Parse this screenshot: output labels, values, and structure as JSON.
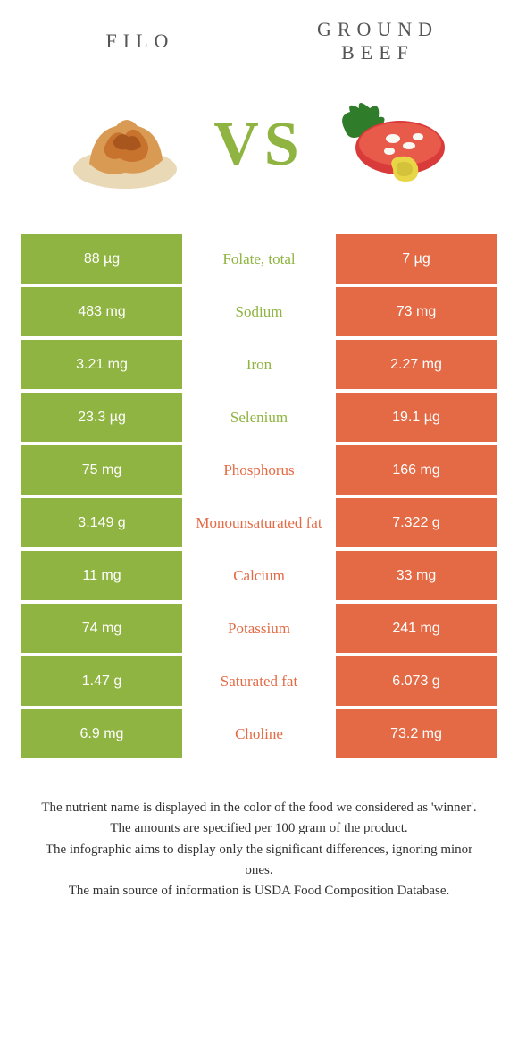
{
  "colors": {
    "green": "#8fb441",
    "orange": "#e46a45",
    "bg": "#ffffff"
  },
  "foods": {
    "left": "Filo",
    "right": "Ground Beef"
  },
  "vs": "VS",
  "rows": [
    {
      "nutrient": "Folate, total",
      "left": "88 µg",
      "right": "7 µg",
      "winner": "left"
    },
    {
      "nutrient": "Sodium",
      "left": "483 mg",
      "right": "73 mg",
      "winner": "left"
    },
    {
      "nutrient": "Iron",
      "left": "3.21 mg",
      "right": "2.27 mg",
      "winner": "left"
    },
    {
      "nutrient": "Selenium",
      "left": "23.3 µg",
      "right": "19.1 µg",
      "winner": "left"
    },
    {
      "nutrient": "Phosphorus",
      "left": "75 mg",
      "right": "166 mg",
      "winner": "right"
    },
    {
      "nutrient": "Monounsaturated fat",
      "left": "3.149 g",
      "right": "7.322 g",
      "winner": "right"
    },
    {
      "nutrient": "Calcium",
      "left": "11 mg",
      "right": "33 mg",
      "winner": "right"
    },
    {
      "nutrient": "Potassium",
      "left": "74 mg",
      "right": "241 mg",
      "winner": "right"
    },
    {
      "nutrient": "Saturated fat",
      "left": "1.47 g",
      "right": "6.073 g",
      "winner": "right"
    },
    {
      "nutrient": "Choline",
      "left": "6.9 mg",
      "right": "73.2 mg",
      "winner": "right"
    }
  ],
  "notes": {
    "line1": "The nutrient name is displayed in the color of the food we considered as 'winner'.",
    "line2": "The amounts are specified per 100 gram of the product.",
    "line3": "The infographic aims to display only the significant differences, ignoring minor ones.",
    "line4": "The main source of information is USDA Food Composition Database."
  }
}
